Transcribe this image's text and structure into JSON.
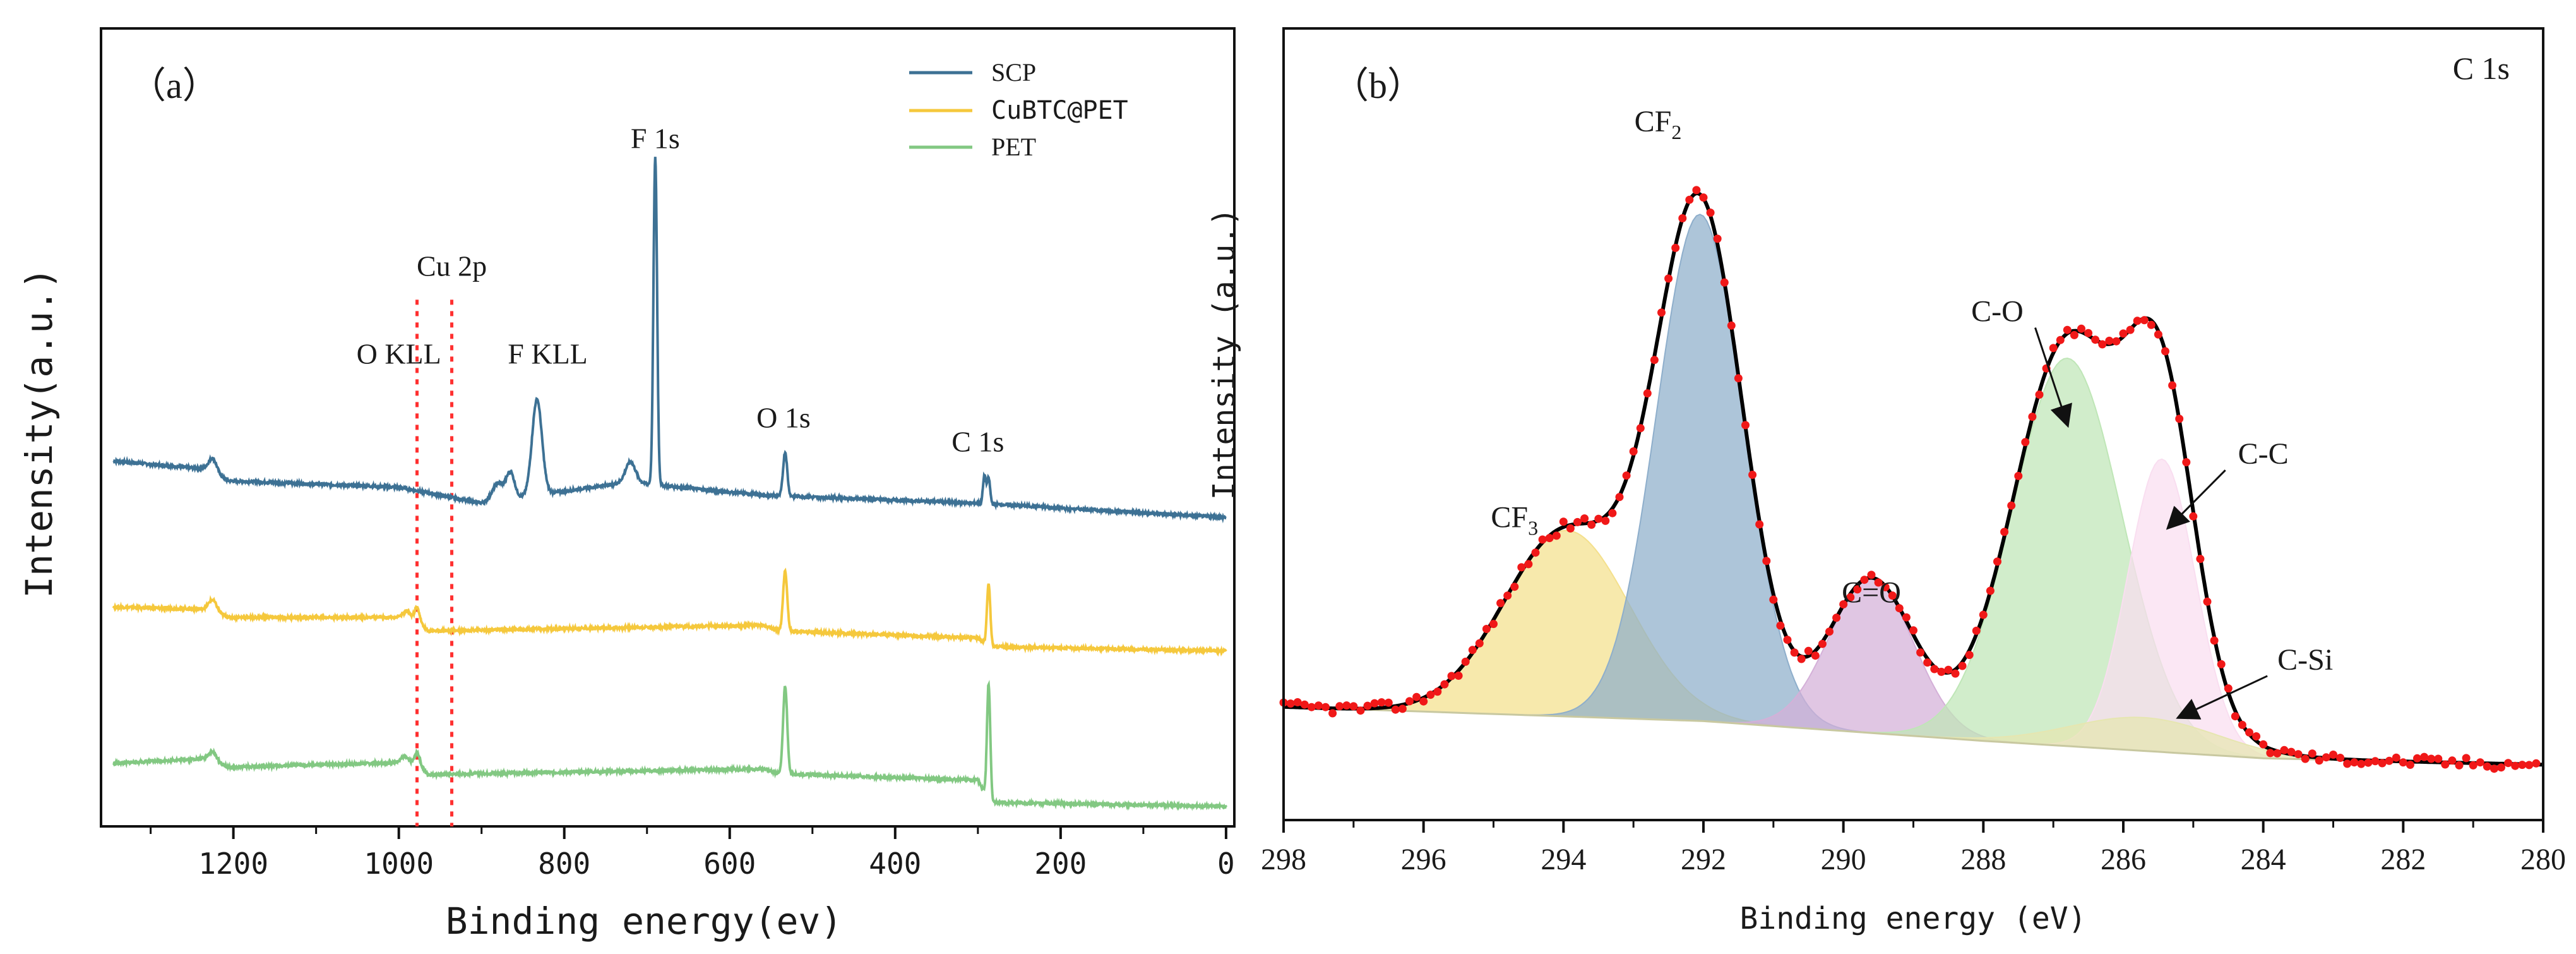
{
  "colors": {
    "scp": "#3d7194",
    "cubtc": "#f5c83c",
    "pet": "#82c882",
    "marker": "#f01818",
    "fit": "#000000",
    "axis": "#111111",
    "ref_line": "#ff3030"
  },
  "chart_data": [
    {
      "id": "a",
      "type": "line",
      "panel_label": "（a）",
      "xlabel": "Binding energy(ev)",
      "ylabel": "Intensity(a.u.)",
      "xlim": [
        1360,
        -10
      ],
      "ylim": [
        0,
        10
      ],
      "x_ticks": [
        1200,
        1000,
        800,
        600,
        400,
        200,
        0
      ],
      "x_tick_labels": [
        "1200",
        "1000",
        "800",
        "600",
        "400",
        "200",
        "0"
      ],
      "legend_position": "top-right",
      "series": [
        {
          "name": "SCP",
          "color": "#3d7194",
          "baseline": [
            [
              1345,
              4.58
            ],
            [
              1235,
              4.48
            ],
            [
              1205,
              4.33
            ],
            [
              1000,
              4.25
            ],
            [
              900,
              4.05
            ],
            [
              720,
              4.32
            ],
            [
              690,
              4.28
            ],
            [
              560,
              4.15
            ],
            [
              300,
              4.05
            ],
            [
              0,
              3.87
            ]
          ],
          "peaks": [
            {
              "center": 1225,
              "height": 0.18,
              "width": 5
            },
            {
              "center": 880,
              "height": 0.22,
              "width": 7
            },
            {
              "center": 865,
              "height": 0.32,
              "width": 5
            },
            {
              "center": 833,
              "height": 1.2,
              "width": 6
            },
            {
              "center": 720,
              "height": 0.25,
              "width": 6
            },
            {
              "center": 690,
              "height": 4.1,
              "width": 2.2
            },
            {
              "center": 533,
              "height": 0.55,
              "width": 2.5
            },
            {
              "center": 292,
              "height": 0.35,
              "width": 1.8
            },
            {
              "center": 287,
              "height": 0.32,
              "width": 1.8
            }
          ]
        },
        {
          "name": "CuBTC@PET",
          "color": "#f5c83c",
          "baseline": [
            [
              1345,
              2.75
            ],
            [
              1235,
              2.72
            ],
            [
              1205,
              2.62
            ],
            [
              1000,
              2.62
            ],
            [
              975,
              2.55
            ],
            [
              965,
              2.45
            ],
            [
              560,
              2.52
            ],
            [
              540,
              2.45
            ],
            [
              300,
              2.36
            ],
            [
              285,
              2.25
            ],
            [
              0,
              2.2
            ]
          ],
          "peaks": [
            {
              "center": 1225,
              "height": 0.15,
              "width": 5
            },
            {
              "center": 990,
              "height": 0.1,
              "width": 5
            },
            {
              "center": 978,
              "height": 0.18,
              "width": 3
            },
            {
              "center": 533,
              "height": 0.75,
              "width": 2.5
            },
            {
              "center": 287,
              "height": 0.78,
              "width": 2
            }
          ]
        },
        {
          "name": "PET",
          "color": "#82c882",
          "baseline": [
            [
              1345,
              0.79
            ],
            [
              1235,
              0.85
            ],
            [
              1205,
              0.74
            ],
            [
              1000,
              0.8
            ],
            [
              975,
              0.77
            ],
            [
              965,
              0.65
            ],
            [
              560,
              0.72
            ],
            [
              540,
              0.66
            ],
            [
              300,
              0.58
            ],
            [
              285,
              0.3
            ],
            [
              0,
              0.25
            ]
          ],
          "peaks": [
            {
              "center": 1225,
              "height": 0.12,
              "width": 5
            },
            {
              "center": 993,
              "height": 0.08,
              "width": 5
            },
            {
              "center": 978,
              "height": 0.15,
              "width": 3
            },
            {
              "center": 533,
              "height": 1.1,
              "width": 2.5
            },
            {
              "center": 287,
              "height": 1.45,
              "width": 2
            }
          ]
        }
      ],
      "reference_lines": [
        {
          "x": 978,
          "style": "dashed"
        },
        {
          "x": 936,
          "style": "dashed"
        }
      ],
      "annotations": [
        {
          "text": "Cu 2p",
          "x": 936,
          "y": 6.9
        },
        {
          "text": "O KLL",
          "x": 1000,
          "y": 5.8
        },
        {
          "text": "F KLL",
          "x": 820,
          "y": 5.8
        },
        {
          "text": "F 1s",
          "x": 690,
          "y": 8.5
        },
        {
          "text": "O 1s",
          "x": 535,
          "y": 5.0
        },
        {
          "text": "C 1s",
          "x": 300,
          "y": 4.7
        }
      ]
    },
    {
      "id": "b",
      "type": "area",
      "panel_label": "（b）",
      "corner_label": "C 1s",
      "xlabel": "Binding energy (eV)",
      "ylabel": "Intensity (a.u.)",
      "xlim": [
        298,
        280
      ],
      "ylim": [
        0,
        10
      ],
      "x_ticks": [
        298,
        296,
        294,
        292,
        290,
        288,
        286,
        284,
        282,
        280
      ],
      "x_tick_labels": [
        "298",
        "296",
        "294",
        "292",
        "290",
        "288",
        "286",
        "284",
        "282",
        "280"
      ],
      "background_line": [
        [
          298,
          1.43
        ],
        [
          292,
          1.25
        ],
        [
          288,
          1.0
        ],
        [
          284,
          0.78
        ],
        [
          280,
          0.7
        ]
      ],
      "components": [
        {
          "name": "CF3",
          "center": 293.95,
          "sigma": 0.9,
          "height": 2.35,
          "color": "#f4e08c"
        },
        {
          "name": "CF2",
          "center": 292.05,
          "sigma": 0.62,
          "height": 6.4,
          "color": "#8eaecb"
        },
        {
          "name": "C=O",
          "center": 289.6,
          "sigma": 0.6,
          "height": 1.95,
          "color": "#d4b0d8"
        },
        {
          "name": "C-O",
          "center": 286.8,
          "sigma": 0.78,
          "height": 4.9,
          "color": "#bfe6b7"
        },
        {
          "name": "C-C",
          "center": 285.45,
          "sigma": 0.48,
          "height": 3.7,
          "color": "#f9def0"
        },
        {
          "name": "C-Si",
          "center": 285.7,
          "sigma": 1.05,
          "height": 0.42,
          "color": "#e6e6b0"
        }
      ],
      "annotations": [
        {
          "text": "CF",
          "sub": "3",
          "x": 294.7,
          "y": 3.7
        },
        {
          "text": "CF",
          "sub": "2",
          "x": 292.65,
          "y": 8.7
        },
        {
          "text": "C=O",
          "x": 289.6,
          "y": 2.75
        },
        {
          "text": "C-O",
          "x": 287.8,
          "y": 6.3,
          "arrow_to": [
            286.8,
            5.0
          ]
        },
        {
          "text": "C-C",
          "x": 284.0,
          "y": 4.5,
          "arrow_to": [
            285.35,
            3.7
          ]
        },
        {
          "text": "C-Si",
          "x": 283.4,
          "y": 1.9,
          "arrow_to": [
            285.2,
            1.3
          ]
        }
      ]
    }
  ]
}
